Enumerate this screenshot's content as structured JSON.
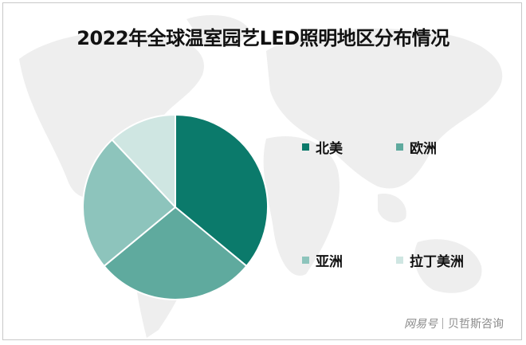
{
  "chart_data": {
    "type": "pie",
    "title": "2022年全球温室园艺LED照明地区分布情况",
    "categories": [
      "北美",
      "欧洲",
      "亚洲",
      "拉丁美洲"
    ],
    "values": [
      36,
      28,
      24,
      12
    ],
    "unit": "%",
    "colors": [
      "#0b7a6b",
      "#5faa9e",
      "#8dc4bc",
      "#cfe6e2"
    ],
    "start_angle_deg": 0,
    "direction": "clockwise",
    "legend_position": "right",
    "data_labels": false
  },
  "title": "2022年全球温室园艺LED照明地区分布情况",
  "legend": [
    {
      "label": "北美",
      "color": "#0b7a6b"
    },
    {
      "label": "欧洲",
      "color": "#5faa9e"
    },
    {
      "label": "亚洲",
      "color": "#8dc4bc"
    },
    {
      "label": "拉丁美洲",
      "color": "#cfe6e2"
    }
  ],
  "watermark": {
    "brand": "网易号",
    "source": "贝哲斯咨询"
  }
}
